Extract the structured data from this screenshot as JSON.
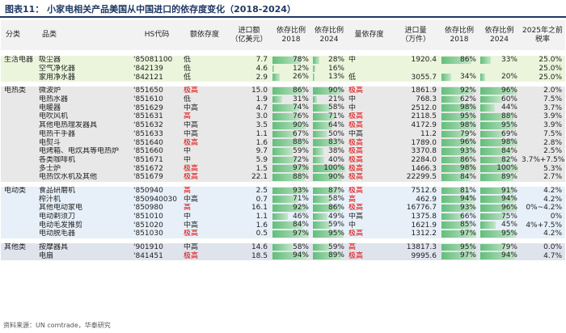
{
  "title": "图表11：  小家电相关产品美国从中国进口的依存度变化（2018-2024）",
  "headers": [
    "分类",
    "品类",
    "HS代码",
    "额依存度",
    "进口额\n（亿美元）",
    "依存比例\n2018",
    "依存比例\n2024",
    "量依存度",
    "进口量\n（万件）",
    "依存比例\n2018",
    "依存比例\n2024",
    "2025年之前\n税率"
  ],
  "colors": {
    "title": "#1f3864",
    "bar": "#63be7b",
    "bar_light": "#c6e6cb",
    "red": "#e00000"
  },
  "groups": [
    {
      "category": "生活电器",
      "rows": [
        {
          "name": "吸尘器",
          "hs": "'85081100",
          "vd": "低",
          "va": "7.7",
          "v18": "78%",
          "v18n": 0.78,
          "v24": "28%",
          "v24n": 0.28,
          "qd": "中",
          "qa": "1920.4",
          "q18": "86%",
          "q18n": 0.86,
          "q24": "33%",
          "q24n": 0.33,
          "tax": "25.0%"
        },
        {
          "name": "空气净化器",
          "hs": "'842139",
          "vd": "低",
          "va": "4.6",
          "v18": "12%",
          "v18n": 0.12,
          "v24": "16%",
          "v24n": 0.16,
          "qd": "",
          "qa": "",
          "q18": "",
          "q18n": 0,
          "q24": "",
          "q24n": 0,
          "tax": "25.0%"
        },
        {
          "name": "家用净水器",
          "hs": "'842121",
          "vd": "低",
          "va": "2.9",
          "v18": "26%",
          "v18n": 0.26,
          "v24": "13%",
          "v24n": 0.13,
          "qd": "低",
          "qa": "3055.7",
          "q18": "34%",
          "q18n": 0.34,
          "q24": "20%",
          "q24n": 0.2,
          "tax": "25.0%"
        }
      ]
    },
    {
      "category": "电热类",
      "rows": [
        {
          "name": "微波炉",
          "hs": "'851650",
          "vd": "极高",
          "va": "15.0",
          "v18": "86%",
          "v18n": 0.86,
          "v24": "90%",
          "v24n": 0.9,
          "qd": "极高",
          "qa": "1861.9",
          "q18": "92%",
          "q18n": 0.92,
          "q24": "96%",
          "q24n": 0.96,
          "tax": "2.0%"
        },
        {
          "name": "电热水器",
          "hs": "'851610",
          "vd": "低",
          "va": "1.9",
          "v18": "31%",
          "v18n": 0.31,
          "v24": "21%",
          "v24n": 0.21,
          "qd": "中",
          "qa": "768.3",
          "q18": "62%",
          "q18n": 0.62,
          "q24": "60%",
          "q24n": 0.6,
          "tax": "7.5%"
        },
        {
          "name": "电暖器",
          "hs": "'851629",
          "vd": "中高",
          "va": "4.7",
          "v18": "74%",
          "v18n": 0.74,
          "v24": "58%",
          "v24n": 0.58,
          "qd": "中",
          "qa": "2512.0",
          "q18": "98%",
          "q18n": 0.98,
          "q24": "44%",
          "q24n": 0.44,
          "tax": "3.7%"
        },
        {
          "name": "电吹风机",
          "hs": "'851631",
          "vd": "高",
          "va": "3.0",
          "v18": "76%",
          "v18n": 0.76,
          "v24": "71%",
          "v24n": 0.71,
          "qd": "极高",
          "qa": "2118.5",
          "q18": "95%",
          "q18n": 0.95,
          "q24": "88%",
          "q24n": 0.88,
          "tax": "3.9%"
        },
        {
          "name": "其他电热理发器具",
          "hs": "'851632",
          "vd": "中高",
          "va": "3.5",
          "v18": "90%",
          "v18n": 0.9,
          "v24": "64%",
          "v24n": 0.64,
          "qd": "极高",
          "qa": "4172.9",
          "q18": "98%",
          "q18n": 0.98,
          "q24": "95%",
          "q24n": 0.95,
          "tax": "3.9%"
        },
        {
          "name": "电热干手器",
          "hs": "'851633",
          "vd": "中高",
          "va": "1.1",
          "v18": "67%",
          "v18n": 0.67,
          "v24": "50%",
          "v24n": 0.5,
          "qd": "中高",
          "qa": "11.2",
          "q18": "79%",
          "q18n": 0.79,
          "q24": "69%",
          "q24n": 0.69,
          "tax": "7.5%"
        },
        {
          "name": "电熨斗",
          "hs": "'851640",
          "vd": "极高",
          "va": "1.6",
          "v18": "88%",
          "v18n": 0.88,
          "v24": "83%",
          "v24n": 0.83,
          "qd": "极高",
          "qa": "1789.0",
          "q18": "96%",
          "q18n": 0.96,
          "q24": "98%",
          "q24n": 0.98,
          "tax": "2.8%"
        },
        {
          "name": "电烤箱、电炊具等电热炉",
          "hs": "'851660",
          "vd": "中",
          "va": "9.7",
          "v18": "59%",
          "v18n": 0.59,
          "v24": "38%",
          "v24n": 0.38,
          "qd": "极高",
          "qa": "3370.8",
          "q18": "93%",
          "q18n": 0.93,
          "q24": "84%",
          "q24n": 0.84,
          "tax": "2.5%"
        },
        {
          "name": "各类咖啡机",
          "hs": "'851671",
          "vd": "中",
          "va": "5.9",
          "v18": "72%",
          "v18n": 0.72,
          "v24": "40%",
          "v24n": 0.4,
          "qd": "极高",
          "qa": "2284.0",
          "q18": "86%",
          "q18n": 0.86,
          "q24": "82%",
          "q24n": 0.82,
          "tax": "3.7%+7.5%"
        },
        {
          "name": "多士炉",
          "hs": "'851672",
          "vd": "极高",
          "va": "1.5",
          "v18": "97%",
          "v18n": 0.97,
          "v24": "100%",
          "v24n": 1.0,
          "qd": "极高",
          "qa": "1466.3",
          "q18": "98%",
          "q18n": 0.98,
          "q24": "100%",
          "q24n": 1.0,
          "tax": "5.3%"
        },
        {
          "name": "电热饮水机及其他",
          "hs": "'851679",
          "vd": "极高",
          "va": "22.1",
          "v18": "88%",
          "v18n": 0.88,
          "v24": "90%",
          "v24n": 0.9,
          "qd": "极高",
          "qa": "22299.5",
          "q18": "84%",
          "q18n": 0.84,
          "q24": "89%",
          "q24n": 0.89,
          "tax": "2.7%"
        }
      ]
    },
    {
      "category": "电动类",
      "rows": [
        {
          "name": "食品研磨机",
          "hs": "'850940",
          "vd": "高",
          "va": "2.5",
          "v18": "93%",
          "v18n": 0.93,
          "v24": "87%",
          "v24n": 0.87,
          "qd": "极高",
          "qa": "7512.6",
          "q18": "81%",
          "q18n": 0.81,
          "q24": "91%",
          "q24n": 0.91,
          "tax": "4.2%"
        },
        {
          "name": "榨汁机",
          "hs": "'850940030",
          "vd": "中高",
          "va": "0.7",
          "v18": "71%",
          "v18n": 0.71,
          "v24": "58%",
          "v24n": 0.58,
          "qd": "高",
          "qa": "462.9",
          "q18": "94%",
          "q18n": 0.94,
          "q24": "94%",
          "q24n": 0.94,
          "tax": "4.2%"
        },
        {
          "name": "其他电动家电",
          "hs": "'850980",
          "vd": "高",
          "va": "16.1",
          "v18": "92%",
          "v18n": 0.92,
          "v24": "86%",
          "v24n": 0.86,
          "qd": "极高",
          "qa": "16776.7",
          "q18": "93%",
          "q18n": 0.93,
          "q24": "96%",
          "q24n": 0.96,
          "tax": "0%~4.2%"
        },
        {
          "name": "电动剃须刀",
          "hs": "'851010",
          "vd": "中",
          "va": "1.1",
          "v18": "46%",
          "v18n": 0.46,
          "v24": "49%",
          "v24n": 0.49,
          "qd": "中高",
          "qa": "1375.8",
          "q18": "66%",
          "q18n": 0.66,
          "q24": "75%",
          "q24n": 0.75,
          "tax": "0%"
        },
        {
          "name": "电动毛发推剪",
          "hs": "'851020",
          "vd": "中高",
          "va": "1.6",
          "v18": "84%",
          "v18n": 0.84,
          "v24": "59%",
          "v24n": 0.59,
          "qd": "中",
          "qa": "1621.9",
          "q18": "85%",
          "q18n": 0.85,
          "q24": "45%",
          "q24n": 0.45,
          "tax": "4%+7.5%"
        },
        {
          "name": "电动脱毛器",
          "hs": "'851030",
          "vd": "极高",
          "va": "0.5",
          "v18": "97%",
          "v18n": 0.97,
          "v24": "95%",
          "v24n": 0.95,
          "qd": "极高",
          "qa": "1312.2",
          "q18": "97%",
          "q18n": 0.97,
          "q24": "95%",
          "q24n": 0.95,
          "tax": "4.2%"
        }
      ]
    },
    {
      "category": "其他类",
      "rows": [
        {
          "name": "按摩器具",
          "hs": "'901910",
          "vd": "中高",
          "va": "14.6",
          "v18": "58%",
          "v18n": 0.58,
          "v24": "59%",
          "v24n": 0.59,
          "qd": "高",
          "qa": "13817.3",
          "q18": "95%",
          "q18n": 0.95,
          "q24": "79%",
          "q24n": 0.79,
          "tax": "0.0%"
        },
        {
          "name": "电扇",
          "hs": "'841451",
          "vd": "极高",
          "va": "18.5",
          "v18": "94%",
          "v18n": 0.94,
          "v24": "89%",
          "v24n": 0.89,
          "qd": "极高",
          "qa": "9995.6",
          "q18": "97%",
          "q18n": 0.97,
          "q24": "94%",
          "q24n": 0.94,
          "tax": "4.7%"
        }
      ]
    }
  ],
  "footer": "资料来源：UN comtrade，华泰研究"
}
